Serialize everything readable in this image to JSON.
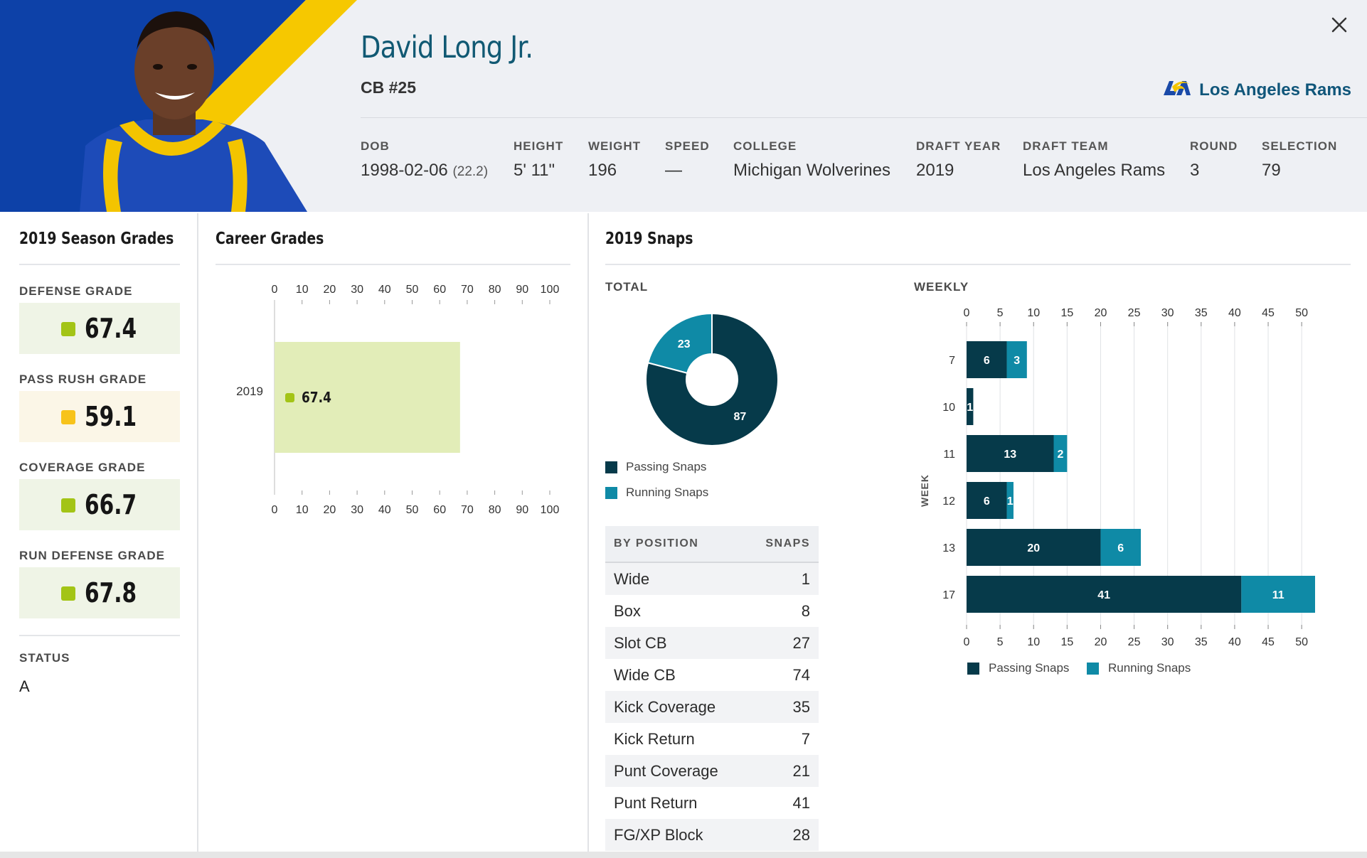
{
  "player": {
    "name": "David Long Jr.",
    "position": "CB #25",
    "team": "Los Angeles Rams"
  },
  "bio": [
    {
      "key": "DOB",
      "value": "1998-02-06",
      "extra": "(22.2)"
    },
    {
      "key": "HEIGHT",
      "value": "5' 11\""
    },
    {
      "key": "WEIGHT",
      "value": "196"
    },
    {
      "key": "SPEED",
      "value": "—"
    },
    {
      "key": "COLLEGE",
      "value": "Michigan Wolverines"
    },
    {
      "key": "DRAFT YEAR",
      "value": "2019"
    },
    {
      "key": "DRAFT TEAM",
      "value": "Los Angeles Rams"
    },
    {
      "key": "ROUND",
      "value": "3"
    },
    {
      "key": "SELECTION",
      "value": "79"
    }
  ],
  "season_grades": {
    "title": "2019 Season Grades",
    "grades": [
      {
        "label": "DEFENSE GRADE",
        "value": "67.4",
        "color": "#a3c416",
        "bg": "#eff4e6"
      },
      {
        "label": "PASS RUSH GRADE",
        "value": "59.1",
        "color": "#f7c31b",
        "bg": "#fbf6e7"
      },
      {
        "label": "COVERAGE GRADE",
        "value": "66.7",
        "color": "#a3c416",
        "bg": "#eff4e6"
      },
      {
        "label": "RUN DEFENSE GRADE",
        "value": "67.8",
        "color": "#a3c416",
        "bg": "#eff4e6"
      }
    ],
    "status_label": "STATUS",
    "status_value": "A"
  },
  "career_grades": {
    "title": "Career Grades"
  },
  "snaps": {
    "title": "2019 Snaps",
    "total_label": "TOTAL",
    "weekly_label": "WEEKLY",
    "week_axis_label": "WEEK",
    "legend": {
      "passing": "Passing Snaps",
      "running": "Running Snaps"
    },
    "colors": {
      "passing": "#063a4a",
      "running": "#0f8aa6"
    },
    "by_position_header": "BY POSITION",
    "snaps_header": "SNAPS",
    "by_position": [
      {
        "position": "Wide",
        "snaps": "1"
      },
      {
        "position": "Box",
        "snaps": "8"
      },
      {
        "position": "Slot CB",
        "snaps": "27"
      },
      {
        "position": "Wide CB",
        "snaps": "74"
      },
      {
        "position": "Kick Coverage",
        "snaps": "35"
      },
      {
        "position": "Kick Return",
        "snaps": "7"
      },
      {
        "position": "Punt Coverage",
        "snaps": "21"
      },
      {
        "position": "Punt Return",
        "snaps": "41"
      },
      {
        "position": "FG/XP Block",
        "snaps": "28"
      }
    ]
  },
  "chart_data": [
    {
      "type": "bar",
      "orientation": "horizontal",
      "categories": [
        "2019"
      ],
      "values": [
        67.4
      ],
      "xlim": [
        0,
        100
      ],
      "xticks": [
        0,
        10,
        20,
        30,
        40,
        50,
        60,
        70,
        80,
        90,
        100
      ],
      "bar_color": "#e2edb8",
      "marker_color": "#a3c416"
    },
    {
      "type": "pie",
      "donut": true,
      "labels": [
        "Running Snaps",
        "Passing Snaps"
      ],
      "values": [
        23,
        87
      ],
      "colors": [
        "#0f8aa6",
        "#063a4a"
      ]
    },
    {
      "type": "bar",
      "orientation": "horizontal",
      "stacked": true,
      "categories": [
        "7",
        "10",
        "11",
        "12",
        "13",
        "17"
      ],
      "series": [
        {
          "name": "Passing Snaps",
          "values": [
            6,
            1,
            13,
            6,
            20,
            41
          ]
        },
        {
          "name": "Running Snaps",
          "values": [
            3,
            0,
            2,
            1,
            6,
            11
          ]
        }
      ],
      "xlim": [
        0,
        52
      ],
      "xticks": [
        0,
        5,
        10,
        15,
        20,
        25,
        30,
        35,
        40,
        45,
        50
      ],
      "ylabel": "WEEK",
      "grid": true,
      "legend": "bottom-left"
    }
  ]
}
